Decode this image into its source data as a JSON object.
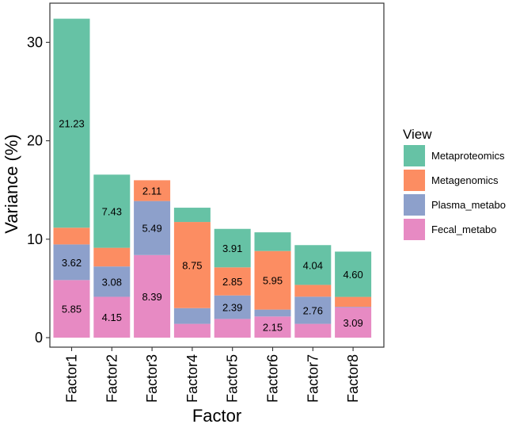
{
  "chart_data": {
    "type": "bar",
    "stacked": true,
    "xlabel": "Factor",
    "ylabel": "Variance (%)",
    "ylim": [
      0,
      33
    ],
    "yticks": [
      0,
      10,
      20,
      30
    ],
    "grid": false,
    "legend_position": "right",
    "legend_title": "View",
    "categories": [
      "Factor1",
      "Factor2",
      "Factor3",
      "Factor4",
      "Factor5",
      "Factor6",
      "Factor7",
      "Factor8"
    ],
    "series": [
      {
        "name": "Fecal_metabo",
        "color": "#e78ac3",
        "values": [
          5.85,
          4.15,
          8.39,
          1.4,
          1.9,
          2.15,
          1.4,
          3.09
        ],
        "labels": [
          "5.85",
          "4.15",
          "8.39",
          "",
          "",
          "2.15",
          "",
          "3.09"
        ]
      },
      {
        "name": "Plasma_metabo",
        "color": "#8da0cb",
        "values": [
          3.62,
          3.08,
          5.49,
          1.6,
          2.39,
          0.7,
          2.76,
          0.05
        ],
        "labels": [
          "3.62",
          "3.08",
          "5.49",
          "",
          "2.39",
          "",
          "2.76",
          ""
        ]
      },
      {
        "name": "Metagenomics",
        "color": "#fc8d62",
        "values": [
          1.7,
          1.9,
          2.11,
          8.75,
          2.85,
          5.95,
          1.2,
          1.0
        ],
        "labels": [
          "",
          "",
          "2.11",
          "8.75",
          "2.85",
          "5.95",
          "",
          ""
        ]
      },
      {
        "name": "Metaproteomics",
        "color": "#66c2a5",
        "values": [
          21.23,
          7.43,
          0,
          1.45,
          3.91,
          1.9,
          4.04,
          4.6
        ],
        "labels": [
          "21.23",
          "7.43",
          "",
          "",
          "3.91",
          "",
          "4.04",
          "4.60"
        ]
      }
    ],
    "legend_order": [
      "Metaproteomics",
      "Metagenomics",
      "Plasma_metabo",
      "Fecal_metabo"
    ]
  }
}
